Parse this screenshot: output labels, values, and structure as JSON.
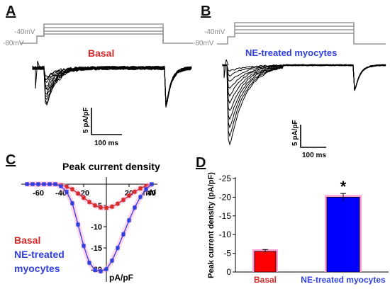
{
  "panels": {
    "A": {
      "label": "A",
      "prot_top": "-40mV",
      "prot_bottom": "-80mV",
      "condition": "Basal",
      "color": "#d42a2a",
      "scale_y": "5 pA/pF",
      "scale_x": "100 ms"
    },
    "B": {
      "label": "B",
      "prot_top": "-40mV",
      "prot_bottom": "-80mV",
      "condition": "NE-treated myocytes",
      "color": "#2f3fe0",
      "scale_y": "5 pA/pF",
      "scale_x": "100 ms"
    },
    "C": {
      "label": "C"
    },
    "D": {
      "label": "D"
    }
  },
  "chart_data": [
    {
      "panel": "C",
      "type": "line",
      "title": "Peak current density",
      "xlabel": "mV",
      "ylabel": "pA/pF",
      "xlim": [
        -75,
        45
      ],
      "ylim": [
        -22,
        1
      ],
      "xticks": [
        -60,
        -40,
        -20,
        0,
        20,
        40
      ],
      "xtick_labels": [
        "-60",
        "-40",
        "-20",
        "",
        "20",
        "40"
      ],
      "yticks": [
        0,
        -5,
        -10,
        -15,
        -20
      ],
      "ytick_labels": [
        "",
        "-5",
        "-10",
        "-15",
        "-20"
      ],
      "grid": false,
      "legend_position": "left",
      "x": [
        -70,
        -65,
        -60,
        -55,
        -50,
        -45,
        -40,
        -35,
        -30,
        -25,
        -20,
        -15,
        -10,
        -5,
        0,
        5,
        10,
        15,
        20,
        25,
        30,
        35,
        40
      ],
      "series": [
        {
          "name": "Basal",
          "color": "#d42a2a",
          "values": [
            0,
            0,
            0,
            0,
            0,
            0,
            -0.2,
            -0.6,
            -1.2,
            -2.2,
            -3.2,
            -4.2,
            -5.0,
            -5.5,
            -5.6,
            -5.3,
            -4.6,
            -3.7,
            -2.7,
            -1.8,
            -1.0,
            -0.4,
            0
          ]
        },
        {
          "name": "NE-treated myocytes",
          "color": "#2f3fe0",
          "values": [
            0,
            0,
            0,
            0,
            0,
            0,
            -0.5,
            -1.8,
            -4.5,
            -9.5,
            -14.5,
            -18.5,
            -20.2,
            -20.5,
            -20.0,
            -18.0,
            -15.0,
            -11.8,
            -8.5,
            -5.5,
            -3.0,
            -1.2,
            0
          ]
        }
      ]
    },
    {
      "panel": "D",
      "type": "bar",
      "categories": [
        "Basal",
        "NE-treated myocytes"
      ],
      "values": [
        -5.5,
        -20.0
      ],
      "errors": [
        0.5,
        1.0
      ],
      "colors": [
        "#ff0000",
        "#0000ff"
      ],
      "highlight_colors": [
        "#ff9fd2",
        "#ff9fd2"
      ],
      "ylabel": "Peak current density (pA/pF)",
      "ylim": [
        0,
        -25
      ],
      "yticks": [
        0,
        -5,
        -10,
        -15,
        -20,
        -25
      ],
      "annotation": "*",
      "grid": false
    }
  ]
}
